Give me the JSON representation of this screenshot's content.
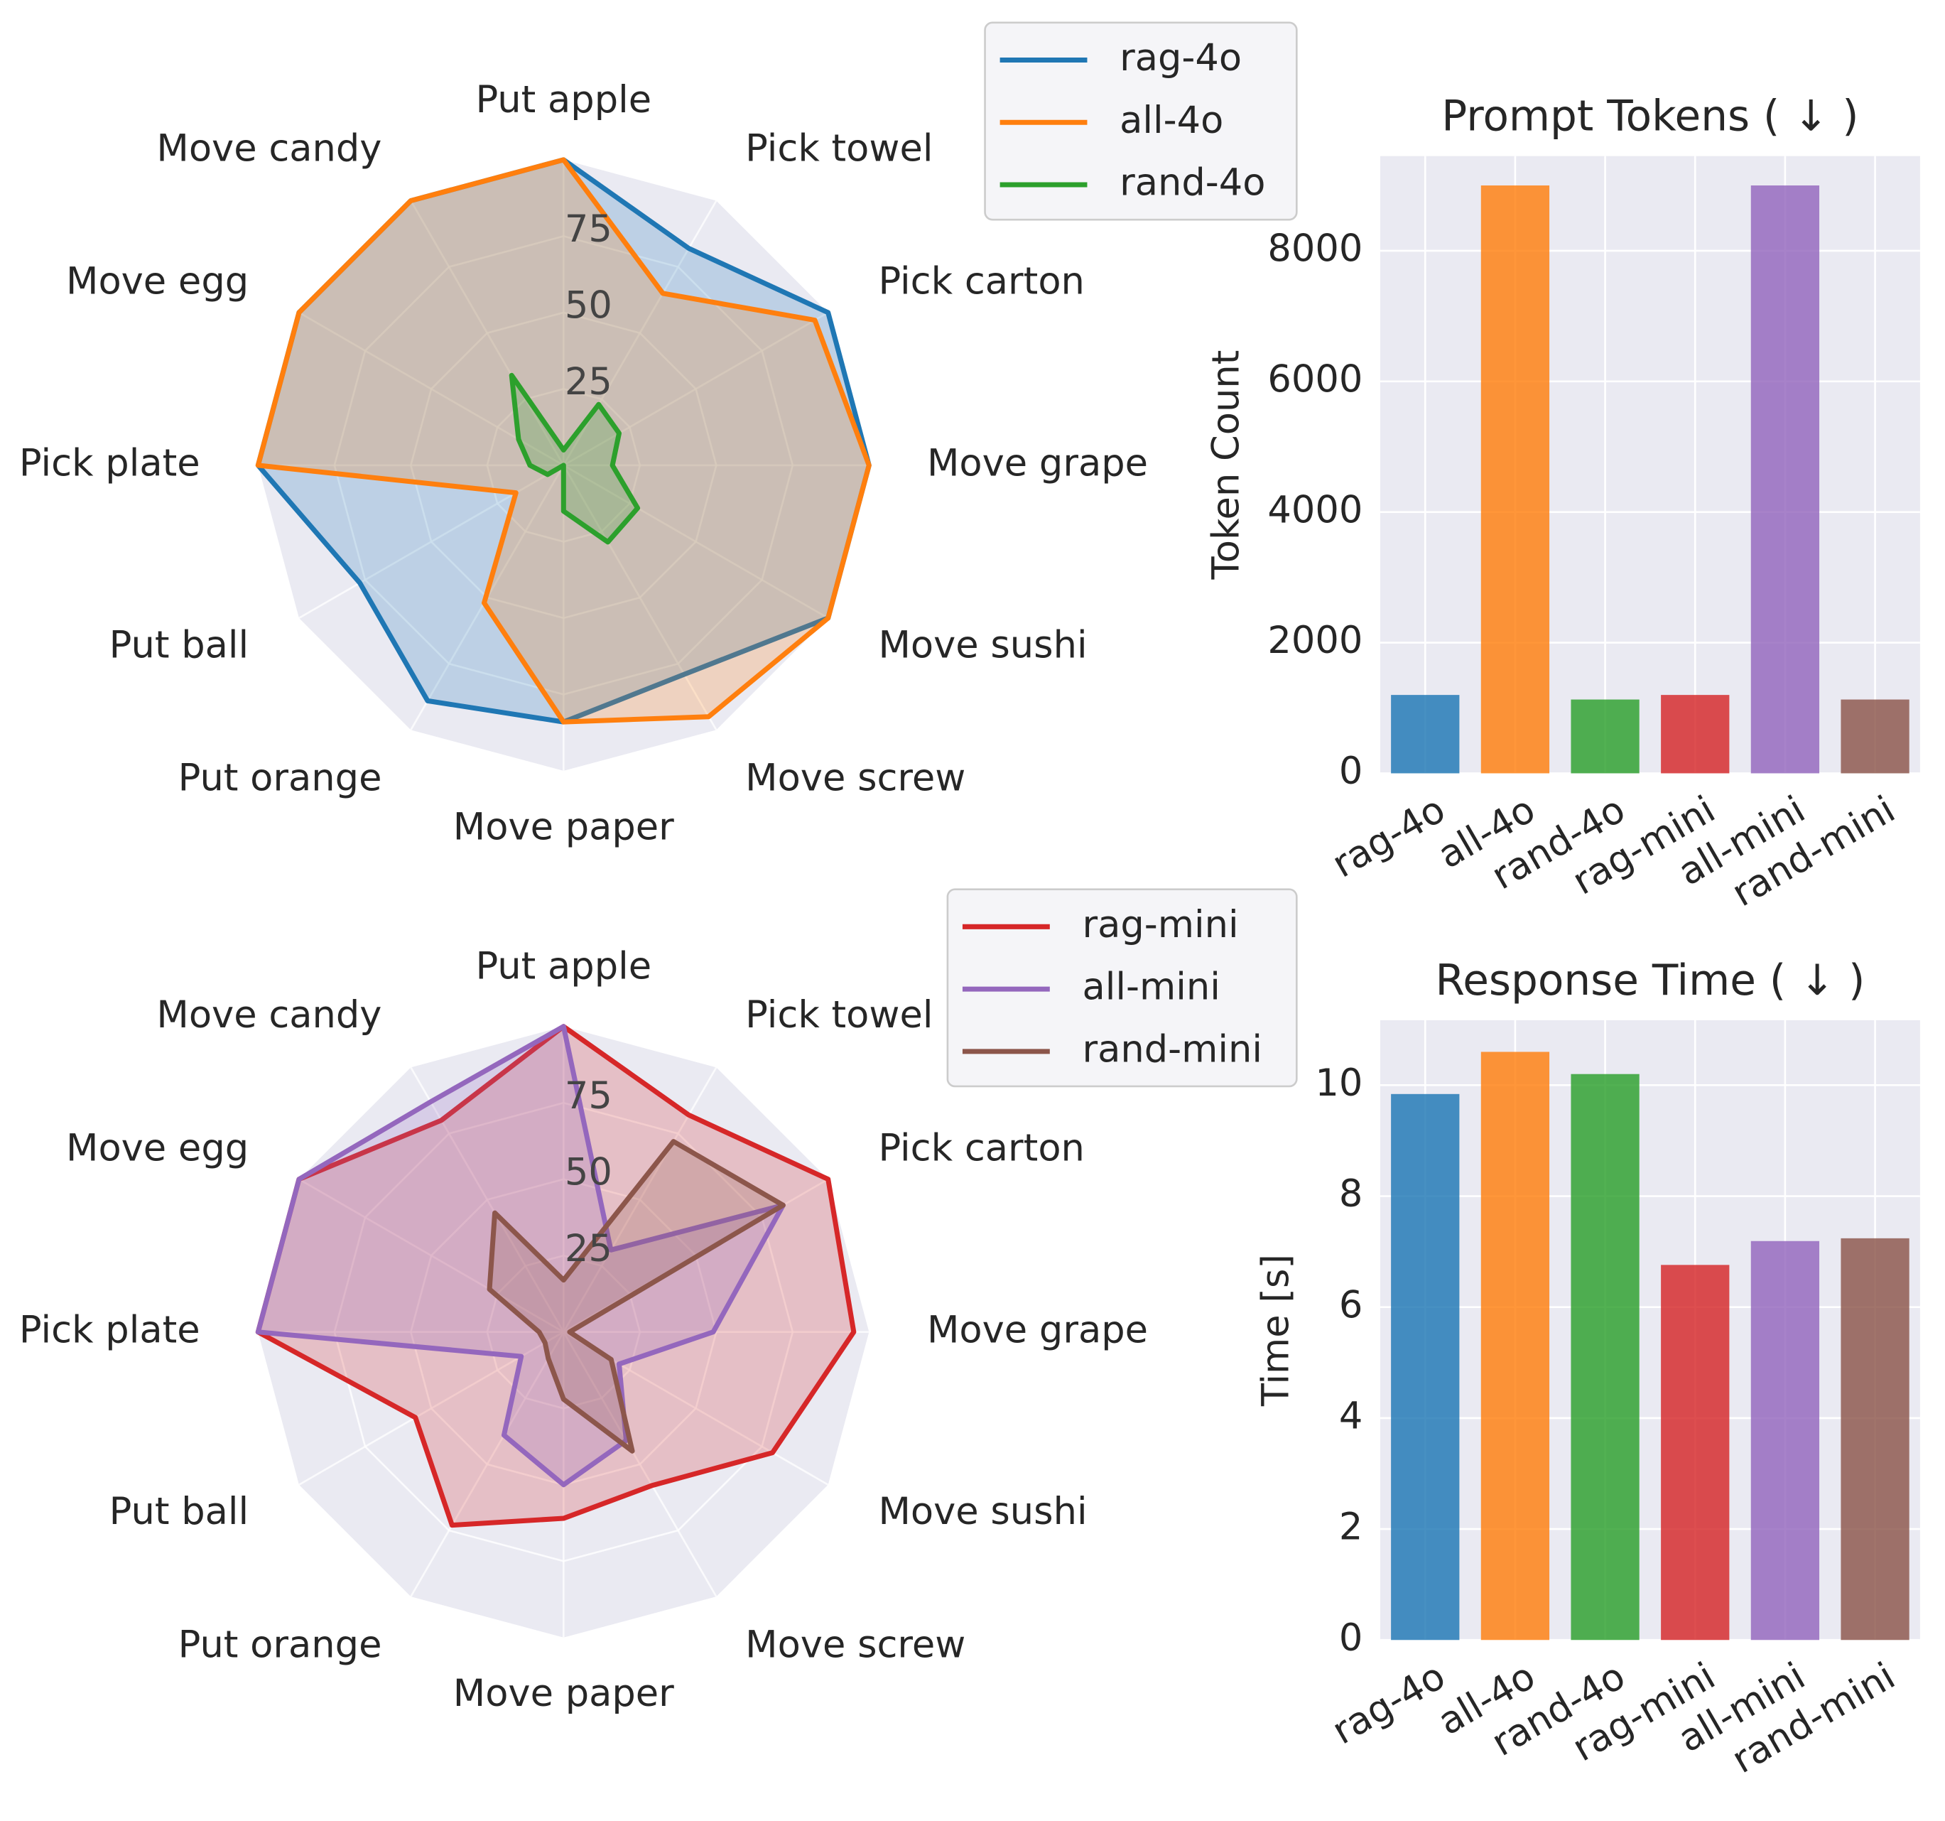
{
  "chart_data": [
    {
      "type": "radar",
      "categories": [
        "Put apple",
        "Pick towel",
        "Pick carton",
        "Move grape",
        "Move sushi",
        "Move screw",
        "Move paper",
        "Put orange",
        "Put ball",
        "Pick plate",
        "Move egg",
        "Move candy"
      ],
      "series": [
        {
          "name": "rag-4o",
          "color": "#1f77b4",
          "values": [
            100,
            82,
            100,
            100,
            100,
            79,
            84,
            89,
            77,
            100,
            100,
            100
          ]
        },
        {
          "name": "all-4o",
          "color": "#ff7f0e",
          "values": [
            100,
            65,
            95,
            100,
            100,
            95,
            84,
            52,
            18,
            100,
            100,
            100
          ]
        },
        {
          "name": "rand-4o",
          "color": "#2ca02c",
          "values": [
            5,
            23,
            21,
            16,
            28,
            29,
            15,
            0,
            6,
            11,
            17,
            34
          ]
        }
      ],
      "rlim": [
        0,
        100
      ],
      "rticks": [
        25,
        50,
        75
      ],
      "legend": "upper right"
    },
    {
      "type": "bar",
      "title": "Prompt Tokens ( ↓ )",
      "ylabel": "Token Count",
      "categories": [
        "rag-4o",
        "all-4o",
        "rand-4o",
        "rag-mini",
        "all-mini",
        "rand-mini"
      ],
      "values": [
        1200,
        9000,
        1130,
        1200,
        9000,
        1130
      ],
      "colors": [
        "#1f77b4",
        "#ff7f0e",
        "#2ca02c",
        "#d62728",
        "#9467bd",
        "#8c564b"
      ],
      "ylim": [
        0,
        9450
      ],
      "yticks": [
        0,
        2000,
        4000,
        6000,
        8000
      ],
      "grid": true
    },
    {
      "type": "radar",
      "categories": [
        "Put apple",
        "Pick towel",
        "Pick carton",
        "Move grape",
        "Move sushi",
        "Move screw",
        "Move paper",
        "Put orange",
        "Put ball",
        "Pick plate",
        "Move egg",
        "Move candy"
      ],
      "series": [
        {
          "name": "rag-mini",
          "color": "#d62728",
          "values": [
            100,
            82,
            100,
            95,
            79,
            58,
            61,
            73,
            56,
            100,
            100,
            80
          ]
        },
        {
          "name": "all-mini",
          "color": "#9467bd",
          "values": [
            100,
            31,
            83,
            49,
            21,
            41,
            50,
            39,
            16,
            100,
            100,
            87
          ]
        },
        {
          "name": "rand-mini",
          "color": "#8c564b",
          "values": [
            17,
            72,
            83,
            2,
            18,
            45,
            22,
            10,
            7,
            8,
            28,
            45
          ]
        }
      ],
      "rlim": [
        0,
        100
      ],
      "rticks": [
        25,
        50,
        75
      ],
      "legend": "upper right"
    },
    {
      "type": "bar",
      "title": "Response Time ( ↓ )",
      "ylabel": "Time [s]",
      "categories": [
        "rag-4o",
        "all-4o",
        "rand-4o",
        "rag-mini",
        "all-mini",
        "rand-mini"
      ],
      "values": [
        9.84,
        10.6,
        10.2,
        6.76,
        7.19,
        7.24
      ],
      "colors": [
        "#1f77b4",
        "#ff7f0e",
        "#2ca02c",
        "#d62728",
        "#9467bd",
        "#8c564b"
      ],
      "ylim": [
        0,
        11.17
      ],
      "yticks": [
        0,
        2,
        4,
        6,
        8,
        10
      ],
      "grid": true
    }
  ]
}
